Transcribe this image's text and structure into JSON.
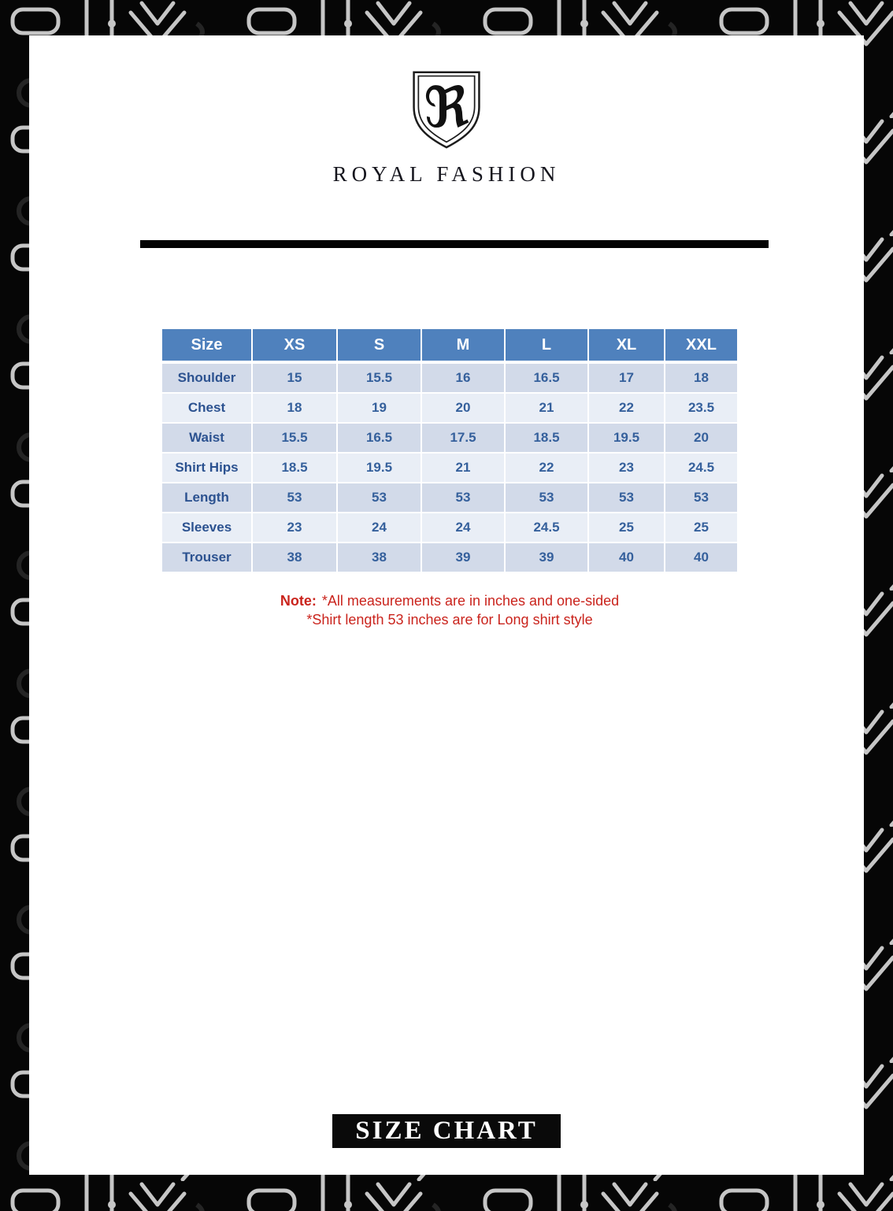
{
  "brand": {
    "monogram": "ℜ",
    "name": "ROYAL FASHION"
  },
  "size_table": {
    "columns": [
      "Size",
      "XS",
      "S",
      "M",
      "L",
      "XL",
      "XXL"
    ],
    "rows": [
      {
        "label": "Shoulder",
        "values": [
          "15",
          "15.5",
          "16",
          "16.5",
          "17",
          "18"
        ]
      },
      {
        "label": "Chest",
        "values": [
          "18",
          "19",
          "20",
          "21",
          "22",
          "23.5"
        ]
      },
      {
        "label": "Waist",
        "values": [
          "15.5",
          "16.5",
          "17.5",
          "18.5",
          "19.5",
          "20"
        ]
      },
      {
        "label": "Shirt Hips",
        "values": [
          "18.5",
          "19.5",
          "21",
          "22",
          "23",
          "24.5"
        ]
      },
      {
        "label": "Length",
        "values": [
          "53",
          "53",
          "53",
          "53",
          "53",
          "53"
        ]
      },
      {
        "label": "Sleeves",
        "values": [
          "23",
          "24",
          "24",
          "24.5",
          "25",
          "25"
        ]
      },
      {
        "label": "Trouser",
        "values": [
          "38",
          "38",
          "39",
          "39",
          "40",
          "40"
        ]
      }
    ]
  },
  "note": {
    "prefix": "Note:",
    "line1": "*All measurements are in inches and one-sided",
    "line2": "*Shirt length 53 inches are for Long shirt style"
  },
  "footer": {
    "title": "SIZE CHART"
  },
  "colors": {
    "header_bg": "#4f81bd",
    "row_dark": "#d2dae9",
    "row_light": "#e9eef6",
    "table_text": "#35609c",
    "label_text": "#2c5290",
    "note_red": "#ca241d",
    "ink": "#0a0a0a"
  }
}
